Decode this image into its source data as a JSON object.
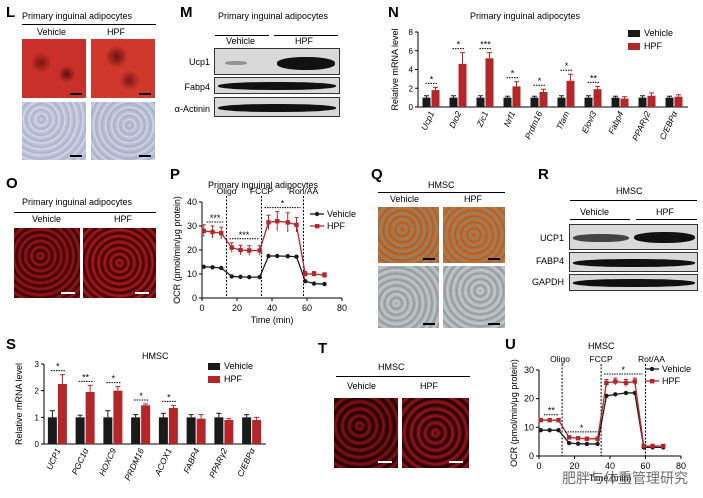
{
  "panels": {
    "L": {
      "label": "L",
      "title": "Primary inguinal adipocytes",
      "conds": [
        "Vehicle",
        "HPF"
      ]
    },
    "M": {
      "label": "M",
      "title": "Primary inguinal adipocytes",
      "conds": [
        "Vehicle",
        "HPF"
      ],
      "bands": [
        "Ucp1",
        "Fabp4",
        "α-Actinin"
      ]
    },
    "N": {
      "label": "N",
      "title": "Primary inguinal adipocytes",
      "ylabel": "Relative mRNA level",
      "legend": [
        "Vehicle",
        "HPF"
      ]
    },
    "O": {
      "label": "O",
      "title": "Primary inguinal adipocytes",
      "conds": [
        "Vehicle",
        "HPF"
      ]
    },
    "P": {
      "label": "P",
      "title": "Primary inguinal adipocytes",
      "ylabel": "OCR (pmol/min/μg protein)",
      "xlabel": "Time (min)",
      "phases": [
        "Oligo",
        "FCCP",
        "Ron/AA"
      ],
      "legend": [
        "Vehicle",
        "HPF"
      ]
    },
    "Q": {
      "label": "Q",
      "title": "HMSC",
      "conds": [
        "Vehicle",
        "HPF"
      ]
    },
    "R": {
      "label": "R",
      "title": "HMSC",
      "conds": [
        "Vehicle",
        "HPF"
      ],
      "bands": [
        "UCP1",
        "FABP4",
        "GAPDH"
      ]
    },
    "S": {
      "label": "S",
      "title": "HMSC",
      "ylabel": "Relative mRNA level",
      "legend": [
        "Vehicle",
        "HPF"
      ]
    },
    "T": {
      "label": "T",
      "title": "HMSC",
      "conds": [
        "Vehicle",
        "HPF"
      ]
    },
    "U": {
      "label": "U",
      "title": "HMSC",
      "ylabel": "OCR (pmol/min/μg protein)",
      "xlabel": "Time (min)",
      "phases": [
        "Oligo",
        "FCCP",
        "Rot/AA"
      ],
      "legend": [
        "Vehicle",
        "HPF"
      ]
    }
  },
  "colors": {
    "vehicle": "#1a1a1a",
    "hpf": "#b3262a",
    "stain_red": "#c0282a",
    "blue_stain": "#aab8d0"
  },
  "watermark": "肥胖与体重管理研究",
  "chart_data": [
    {
      "id": "N",
      "type": "bar",
      "title": "Primary inguinal adipocytes",
      "ylabel": "Relative mRNA level",
      "ylim": [
        0,
        8
      ],
      "yticks": [
        0,
        2,
        4,
        6,
        8
      ],
      "categories": [
        "Ucp1",
        "Dio2",
        "Zic1",
        "Nrf1",
        "Prdm16",
        "Tfam",
        "Elovl3",
        "Fabp4",
        "PPARγ2",
        "C/EBPα"
      ],
      "series": [
        {
          "name": "Vehicle",
          "values": [
            1,
            1,
            1,
            1,
            1,
            1,
            1,
            1,
            1,
            1
          ],
          "err": [
            0.2,
            0.2,
            0.2,
            0.15,
            0.15,
            0.2,
            0.2,
            0.15,
            0.2,
            0.15
          ]
        },
        {
          "name": "HPF",
          "values": [
            1.8,
            4.6,
            5.2,
            2.2,
            1.6,
            2.8,
            1.9,
            0.9,
            1.2,
            1.1
          ],
          "err": [
            0.3,
            1.2,
            0.6,
            0.5,
            0.3,
            0.7,
            0.3,
            0.2,
            0.3,
            0.2
          ]
        }
      ],
      "sig": [
        "*",
        "*",
        "***",
        "*",
        "*",
        "*",
        "**",
        "",
        "",
        ""
      ]
    },
    {
      "id": "P",
      "type": "line",
      "title": "Primary inguinal adipocytes",
      "xlabel": "Time (min)",
      "ylabel": "OCR (pmol/min/μg protein)",
      "xlim": [
        0,
        80
      ],
      "ylim": [
        0,
        40
      ],
      "xticks": [
        0,
        20,
        40,
        60,
        80
      ],
      "yticks": [
        0,
        10,
        20,
        30,
        40
      ],
      "injections": [
        14,
        34,
        58
      ],
      "phases": [
        "Oligo",
        "FCCP",
        "Ron/AA"
      ],
      "x": [
        1,
        6,
        11,
        17,
        22,
        27,
        33,
        38,
        43,
        49,
        54,
        59,
        64,
        70
      ],
      "series": [
        {
          "name": "Vehicle",
          "values": [
            13,
            12.8,
            12.5,
            9,
            8.8,
            8.7,
            8.7,
            17.5,
            17.5,
            17.4,
            17.2,
            7,
            6,
            5.8
          ]
        },
        {
          "name": "HPF",
          "values": [
            28,
            27.5,
            27,
            21,
            20,
            19.8,
            19.8,
            31.5,
            32,
            31.5,
            30.5,
            10,
            10,
            9.5
          ],
          "err": [
            2.5,
            2.5,
            2.5,
            2,
            2,
            2,
            2,
            3,
            4,
            4,
            3,
            1,
            1,
            1
          ]
        }
      ],
      "sig": [
        "***",
        "***",
        "*"
      ]
    },
    {
      "id": "S",
      "type": "bar",
      "title": "HMSC",
      "ylabel": "Relative mRNA level",
      "ylim": [
        0,
        3
      ],
      "yticks": [
        0,
        1,
        2,
        3
      ],
      "categories": [
        "UCP1",
        "PGC1α",
        "HOXC9",
        "PRDM16",
        "ACOX1",
        "FABP4",
        "PPARγ2",
        "C/EBPα"
      ],
      "series": [
        {
          "name": "Vehicle",
          "values": [
            1,
            1,
            1,
            1,
            1,
            1,
            1,
            1
          ],
          "err": [
            0.25,
            0.08,
            0.25,
            0.1,
            0.15,
            0.1,
            0.15,
            0.1
          ]
        },
        {
          "name": "HPF",
          "values": [
            2.25,
            1.95,
            2.0,
            1.45,
            1.35,
            0.95,
            0.9,
            0.9
          ],
          "err": [
            0.35,
            0.25,
            0.15,
            0.05,
            0.1,
            0.15,
            0.05,
            0.1
          ]
        }
      ],
      "sig": [
        "*",
        "**",
        "*",
        "*",
        "*",
        "",
        "",
        ""
      ]
    },
    {
      "id": "U",
      "type": "line",
      "title": "HMSC",
      "xlabel": "Time (min)",
      "ylabel": "OCR (pmol/min/μg protein)",
      "xlim": [
        0,
        80
      ],
      "ylim": [
        0,
        30
      ],
      "xticks": [
        0,
        20,
        40,
        60,
        80
      ],
      "yticks": [
        0,
        10,
        20,
        30
      ],
      "injections": [
        13,
        35,
        60
      ],
      "phases": [
        "Oligo",
        "FCCP",
        "Rot/AA"
      ],
      "x": [
        1,
        6,
        11,
        17,
        22,
        27,
        33,
        38,
        43,
        49,
        54,
        59,
        64,
        70
      ],
      "series": [
        {
          "name": "Vehicle",
          "values": [
            9,
            9,
            9,
            4.5,
            4.3,
            4.2,
            4.2,
            21,
            21.5,
            22,
            22,
            3,
            3,
            3
          ]
        },
        {
          "name": "HPF",
          "values": [
            12.5,
            12.5,
            12.5,
            6.5,
            6.2,
            6,
            6,
            25.5,
            26,
            25.5,
            26,
            3.5,
            3.5,
            3.5
          ],
          "err": [
            0.5,
            0.5,
            0.5,
            0.5,
            0.5,
            0.5,
            0.5,
            1.2,
            1.2,
            1.2,
            1.2,
            0.3,
            0.3,
            0.3
          ]
        }
      ],
      "sig": [
        "**",
        "*",
        "*"
      ]
    }
  ]
}
